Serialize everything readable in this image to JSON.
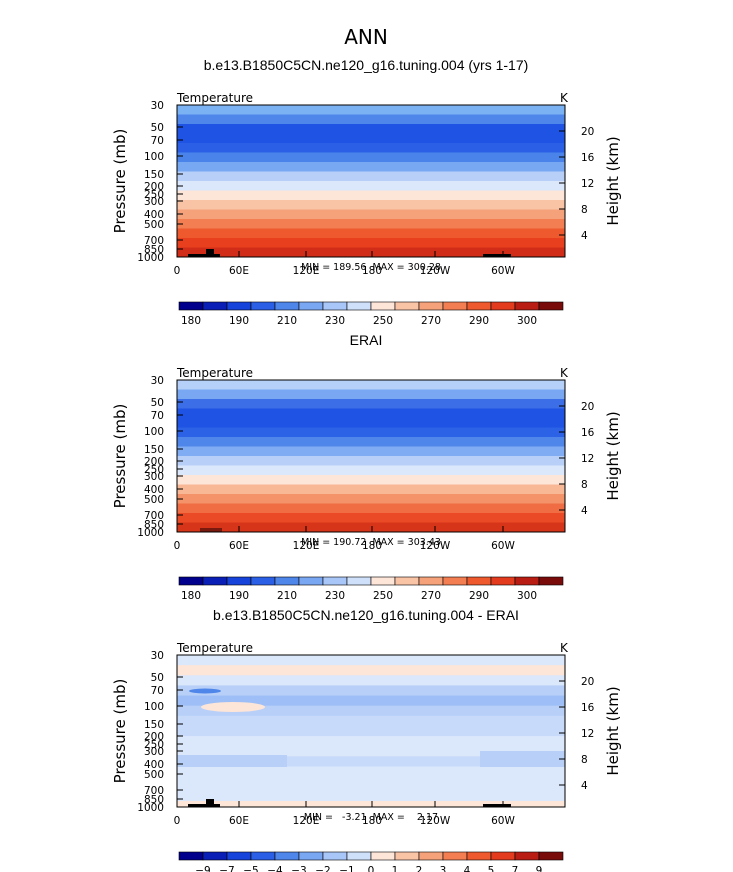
{
  "main_title": "ANN",
  "chart_data": [
    {
      "type": "heatmap",
      "title": "b.e13.B1850C5CN.ne120_g16.tuning.004 (yrs 1-17)",
      "left_label": "Temperature",
      "right_label": "K",
      "ylabel": "Pressure (mb)",
      "ylabel_right": "Height (km)",
      "x_ticks": [
        "0",
        "60E",
        "120E",
        "180",
        "120W",
        "60W"
      ],
      "y_ticks": [
        "30",
        "50",
        "70",
        "100",
        "150",
        "200",
        "250",
        "300",
        "400",
        "500",
        "700",
        "850",
        "1000"
      ],
      "y_ticks_right": [
        "20",
        "16",
        "12",
        "8",
        "4"
      ],
      "minmax": "MIN = 189.56  MAX = 300.28",
      "colorbar_labels": [
        "180",
        "190",
        "210",
        "230",
        "250",
        "270",
        "290",
        "300"
      ],
      "band_colors": [
        "#7bb2f4",
        "#4f86ea",
        "#1e53e3",
        "#1e53e3",
        "#2a5fe6",
        "#4a84eb",
        "#78a8f2",
        "#b8d0f8",
        "#dbe7fb",
        "#fde5d8",
        "#f9c3a6",
        "#f5a27b",
        "#f27e52",
        "#ee5a2e",
        "#e83f1f",
        "#d02c17"
      ]
    },
    {
      "type": "heatmap",
      "title": "ERAI",
      "left_label": "Temperature",
      "right_label": "K",
      "ylabel": "Pressure (mb)",
      "ylabel_right": "Height (km)",
      "x_ticks": [
        "0",
        "60E",
        "120E",
        "180",
        "120W",
        "60W"
      ],
      "y_ticks": [
        "30",
        "50",
        "70",
        "100",
        "150",
        "200",
        "250",
        "300",
        "400",
        "500",
        "700",
        "850",
        "1000"
      ],
      "y_ticks_right": [
        "20",
        "16",
        "12",
        "8",
        "4"
      ],
      "minmax": "MIN = 190.72  MAX = 303.43",
      "colorbar_labels": [
        "180",
        "190",
        "210",
        "230",
        "250",
        "270",
        "290",
        "300"
      ],
      "band_colors": [
        "#b6d1f9",
        "#7aa7f2",
        "#3c6ee7",
        "#1e53e3",
        "#1e53e3",
        "#2c62e6",
        "#4f86ea",
        "#80acf3",
        "#b8d0f8",
        "#dbe7fb",
        "#fde5d8",
        "#f8b896",
        "#f4936a",
        "#f06c42",
        "#ea4a26",
        "#d63519"
      ]
    },
    {
      "type": "heatmap",
      "title": "b.e13.B1850C5CN.ne120_g16.tuning.004 - ERAI",
      "left_label": "Temperature",
      "right_label": "K",
      "ylabel": "Pressure (mb)",
      "ylabel_right": "Height (km)",
      "x_ticks": [
        "0",
        "60E",
        "120E",
        "180",
        "120W",
        "60W"
      ],
      "y_ticks": [
        "30",
        "50",
        "70",
        "100",
        "150",
        "200",
        "250",
        "300",
        "400",
        "500",
        "700",
        "850",
        "1000"
      ],
      "y_ticks_right": [
        "20",
        "16",
        "12",
        "8",
        "4"
      ],
      "minmax": "MIN =   -3.21  MAX =    2.17",
      "colorbar_labels": [
        "-9",
        "-7",
        "-5",
        "-4",
        "-3",
        "-2",
        "-1",
        "0",
        "1",
        "2",
        "3",
        "4",
        "5",
        "7",
        "9"
      ],
      "band_colors": [
        "#dbe7fb",
        "#fde5d8",
        "#dbe7fb",
        "#b8d0f8",
        "#9dbef6",
        "#b8d0f8",
        "#c8dafa",
        "#c8dafa",
        "#dbe7fb",
        "#dbe7fb",
        "#c8dafa",
        "#dbe7fb",
        "#dbe7fb",
        "#dbe7fb",
        "#dbe7fb"
      ]
    }
  ],
  "colorbar_colors": {
    "absolute": [
      "#00008c",
      "#0a1fb5",
      "#1643d9",
      "#2a5fe6",
      "#4f86ea",
      "#7aa7f2",
      "#a8c6f7",
      "#cfe0fb",
      "#fde5d8",
      "#f9c3a6",
      "#f5a27b",
      "#f27e52",
      "#ee5a2e",
      "#e23b1d",
      "#b81c12",
      "#7a0b0b"
    ],
    "difference": [
      "#00008c",
      "#0a1fb5",
      "#1643d9",
      "#2a5fe6",
      "#4f86ea",
      "#7aa7f2",
      "#a8c6f7",
      "#cfe0fb",
      "#fde5d8",
      "#f9c3a6",
      "#f5a27b",
      "#f27e52",
      "#ee5a2e",
      "#e23b1d",
      "#b81c12",
      "#7a0b0b"
    ]
  }
}
